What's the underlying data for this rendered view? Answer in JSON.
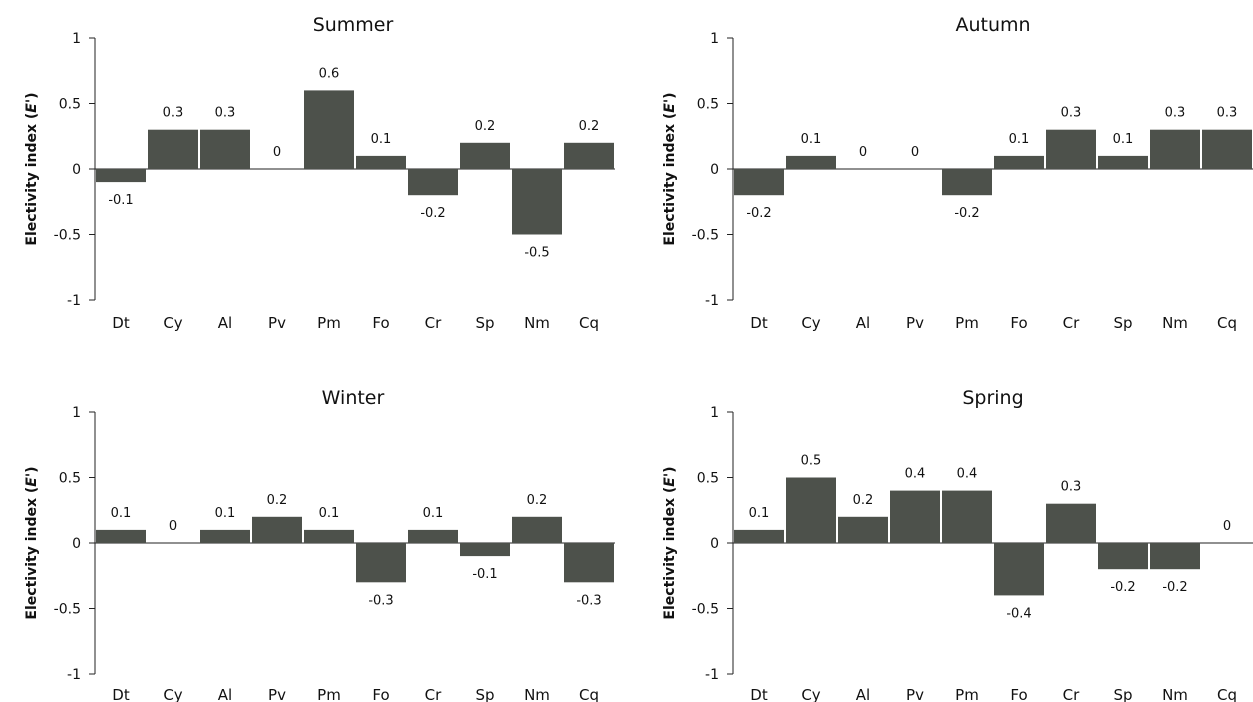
{
  "chart_data": [
    {
      "type": "bar",
      "title": "Summer",
      "ylabel": "Electivity index (",
      "ylabel_symbol": "E'",
      "ylabel_close": ")",
      "ylim": [
        -1,
        1
      ],
      "yticks": [
        "1",
        "0.5",
        "0",
        "-0.5",
        "-1"
      ],
      "categories": [
        "Dt",
        "Cy",
        "Al",
        "Pv",
        "Pm",
        "Fo",
        "Cr",
        "Sp",
        "Nm",
        "Cq"
      ],
      "values": [
        -0.1,
        0.3,
        0.3,
        0,
        0.6,
        0.1,
        -0.2,
        0.2,
        -0.5,
        0.2
      ],
      "labels": [
        "-0.1",
        "0.3",
        "0.3",
        "0",
        "0.6",
        "0.1",
        "-0.2",
        "0.2",
        "-0.5",
        "0.2"
      ],
      "bar_color": "#4d514b"
    },
    {
      "type": "bar",
      "title": "Autumn",
      "ylabel": "Electivity index (",
      "ylabel_symbol": "E'",
      "ylabel_close": ")",
      "ylim": [
        -1,
        1
      ],
      "yticks": [
        "1",
        "0.5",
        "0",
        "-0.5",
        "-1"
      ],
      "categories": [
        "Dt",
        "Cy",
        "Al",
        "Pv",
        "Pm",
        "Fo",
        "Cr",
        "Sp",
        "Nm",
        "Cq"
      ],
      "values": [
        -0.2,
        0.1,
        0,
        0,
        -0.2,
        0.1,
        0.3,
        0.1,
        0.3,
        0.3
      ],
      "labels": [
        "-0.2",
        "0.1",
        "0",
        "0",
        "-0.2",
        "0.1",
        "0.3",
        "0.1",
        "0.3",
        "0.3"
      ],
      "bar_color": "#4d514b"
    },
    {
      "type": "bar",
      "title": "Winter",
      "ylabel": "Electivity index (",
      "ylabel_symbol": "E'",
      "ylabel_close": ")",
      "ylim": [
        -1,
        1
      ],
      "yticks": [
        "1",
        "0.5",
        "0",
        "-0.5",
        "-1"
      ],
      "categories": [
        "Dt",
        "Cy",
        "Al",
        "Pv",
        "Pm",
        "Fo",
        "Cr",
        "Sp",
        "Nm",
        "Cq"
      ],
      "values": [
        0.1,
        0,
        0.1,
        0.2,
        0.1,
        -0.3,
        0.1,
        -0.1,
        0.2,
        -0.3
      ],
      "labels": [
        "0.1",
        "0",
        "0.1",
        "0.2",
        "0.1",
        "-0.3",
        "0.1",
        "-0.1",
        "0.2",
        "-0.3"
      ],
      "bar_color": "#4d514b"
    },
    {
      "type": "bar",
      "title": "Spring",
      "ylabel": "Electivity index (",
      "ylabel_symbol": "E'",
      "ylabel_close": ")",
      "ylim": [
        -1,
        1
      ],
      "yticks": [
        "1",
        "0.5",
        "0",
        "-0.5",
        "-1"
      ],
      "categories": [
        "Dt",
        "Cy",
        "Al",
        "Pv",
        "Pm",
        "Fo",
        "Cr",
        "Sp",
        "Nm",
        "Cq"
      ],
      "values": [
        0.1,
        0.5,
        0.2,
        0.4,
        0.4,
        -0.4,
        0.3,
        -0.2,
        -0.2,
        0
      ],
      "labels": [
        "0.1",
        "0.5",
        "0.2",
        "0.4",
        "0.4",
        "-0.4",
        "0.3",
        "-0.2",
        "-0.2",
        "0"
      ],
      "bar_color": "#4d514b"
    }
  ]
}
